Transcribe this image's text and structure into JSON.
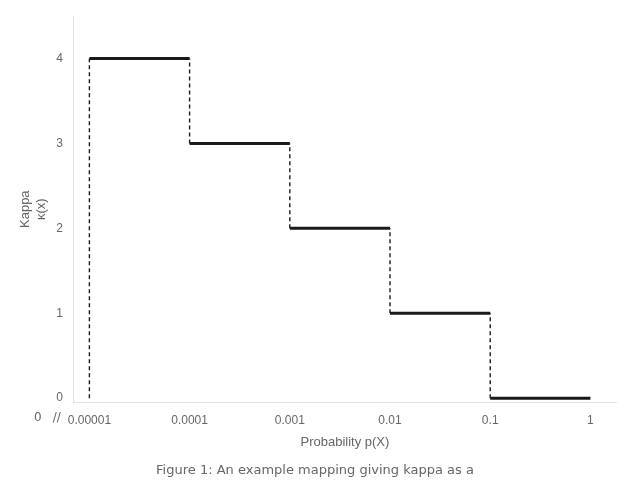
{
  "chart_data": {
    "type": "line",
    "title": "Figure 1: An example mapping giving kappa as a",
    "xlabel": "Probability p(X)",
    "ylabel": [
      "Kappa",
      "κ(x)"
    ],
    "annotations": [
      "0",
      "//"
    ],
    "log": "x",
    "xlim": [
      7e-06,
      1.8
    ],
    "xticks": [
      1e-05,
      0.0001,
      0.001,
      0.01,
      0.1,
      1
    ],
    "ylim": [
      -0.05,
      4.5
    ],
    "yticks": [
      0,
      1,
      2,
      3,
      4
    ],
    "grid": false,
    "series": [
      {
        "x": [
          1e-05,
          0.0001
        ],
        "values": [
          4,
          4
        ],
        "color": "#1a1a1a",
        "line_style": "solid"
      },
      {
        "x": [
          0.0001,
          0.001
        ],
        "values": [
          3,
          3
        ],
        "color": "#1a1a1a",
        "line_style": "solid"
      },
      {
        "x": [
          0.001,
          0.01
        ],
        "values": [
          2,
          2
        ],
        "color": "#1a1a1a",
        "line_style": "solid"
      },
      {
        "x": [
          0.01,
          0.1
        ],
        "values": [
          1,
          1
        ],
        "color": "#1a1a1a",
        "line_style": "solid"
      },
      {
        "x": [
          0.1,
          1
        ],
        "values": [
          0,
          0
        ],
        "color": "#1a1a1a",
        "line_style": "solid"
      },
      {
        "x": [
          1e-05,
          1e-05
        ],
        "values": [
          0,
          4
        ],
        "color": "#1a1a1a",
        "line_style": "dashed"
      },
      {
        "x": [
          0.0001,
          0.0001
        ],
        "values": [
          3,
          4
        ],
        "color": "#1a1a1a",
        "line_style": "dashed"
      },
      {
        "x": [
          0.001,
          0.001
        ],
        "values": [
          2,
          3
        ],
        "color": "#1a1a1a",
        "line_style": "dashed"
      },
      {
        "x": [
          0.01,
          0.01
        ],
        "values": [
          1,
          2
        ],
        "color": "#1a1a1a",
        "line_style": "dashed"
      },
      {
        "x": [
          0.1,
          0.1
        ],
        "values": [
          0,
          1
        ],
        "color": "#1a1a1a",
        "line_style": "dashed"
      }
    ]
  }
}
